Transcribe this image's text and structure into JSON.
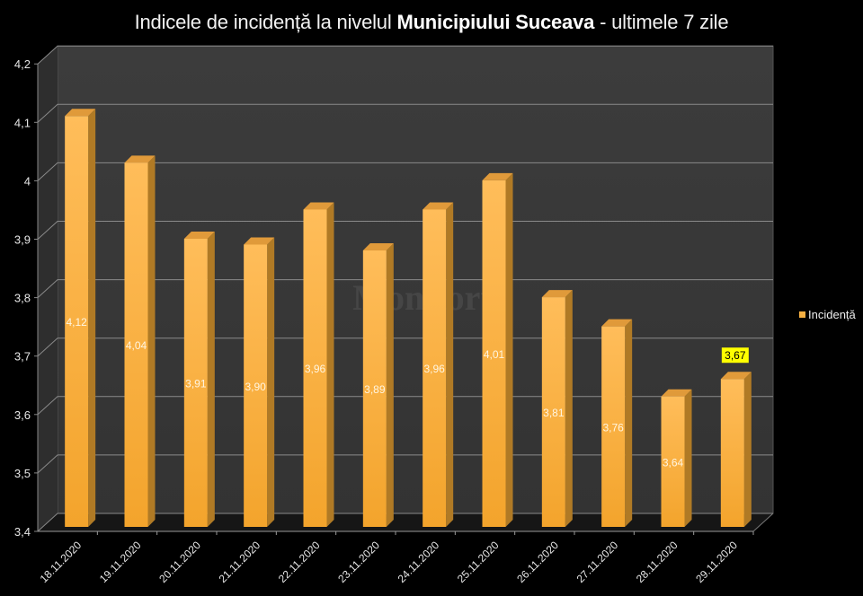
{
  "header": {
    "title_prefix": "Indicele de incidență la nivelul ",
    "title_bold": "Municipiului Suceava",
    "title_suffix": " - ultimele 7 zile"
  },
  "legend": {
    "label": "Incidență",
    "color": "#f6b042"
  },
  "watermark": "Monitorul",
  "highlight": {
    "index": 11,
    "label": "3,67",
    "bg": "#ffff00"
  },
  "colors": {
    "bar_front": "#f7ab3c",
    "bar_side": "#b07a25",
    "bar_top": "#e09a3a",
    "wall": "#3a3a3a",
    "floor": "#1a1a1a",
    "grid": "#8a8a8a"
  },
  "chart_data": {
    "type": "bar",
    "title": "Indicele de incidență la nivelul Municipiului Suceava - ultimele 7 zile",
    "xlabel": "",
    "ylabel": "",
    "ylim": [
      3.4,
      4.2
    ],
    "yticks": [
      "3,4",
      "3,5",
      "3,6",
      "3,7",
      "3,8",
      "3,9",
      "4",
      "4,1",
      "4,2"
    ],
    "grid": true,
    "legend_position": "right",
    "categories": [
      "18.11.2020",
      "19.11.2020",
      "20.11.2020",
      "21.11.2020",
      "22.11.2020",
      "23.11.2020",
      "24.11.2020",
      "25.11.2020",
      "26.11.2020",
      "27.11.2020",
      "28.11.2020",
      "29.11.2020"
    ],
    "series": [
      {
        "name": "Incidență",
        "values": [
          4.12,
          4.04,
          3.91,
          3.9,
          3.96,
          3.89,
          3.96,
          4.01,
          3.81,
          3.76,
          3.64,
          3.67
        ],
        "labels": [
          "4,12",
          "4,04",
          "3,91",
          "3,90",
          "3,96",
          "3,89",
          "3,96",
          "4,01",
          "3,81",
          "3,76",
          "3,64",
          "3,67"
        ]
      }
    ]
  }
}
